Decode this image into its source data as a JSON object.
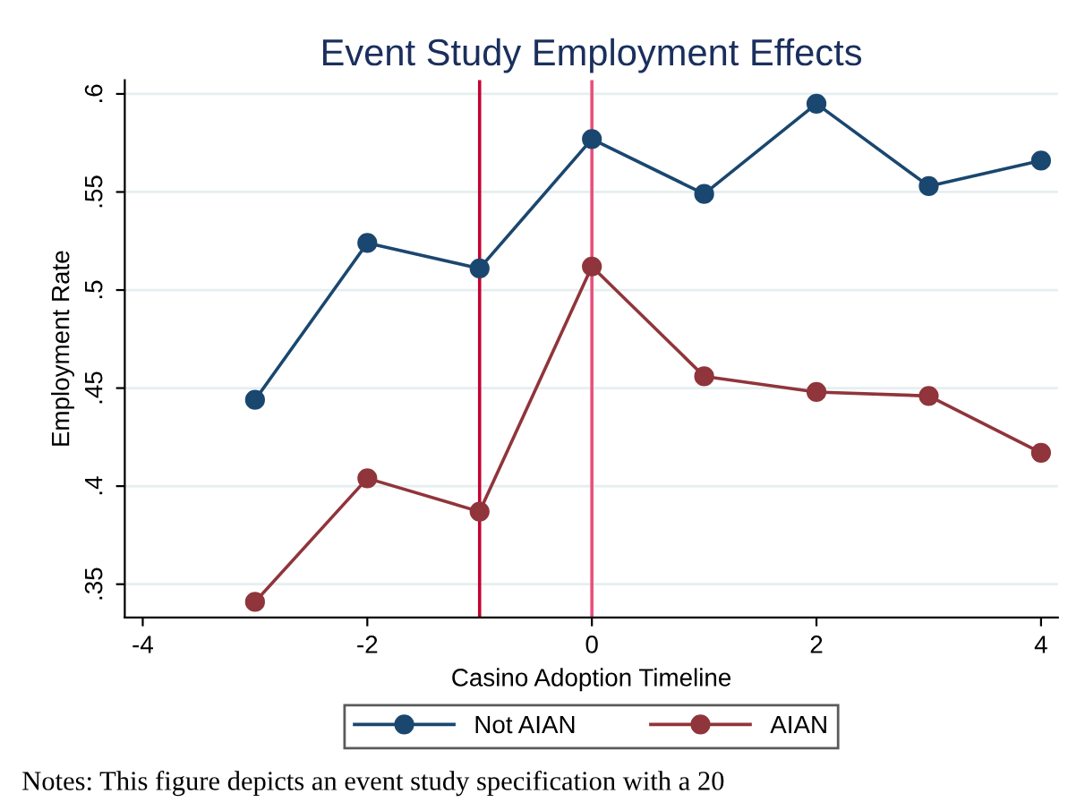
{
  "chart_data": {
    "type": "line",
    "title": "Event Study Employment Effects",
    "xlabel": "Casino Adoption Timeline",
    "ylabel": "Employment Rate",
    "x": [
      -3,
      -2,
      -1,
      0,
      1,
      2,
      3,
      4
    ],
    "series": [
      {
        "name": "Not AIAN",
        "color": "#1a476f",
        "values": [
          0.444,
          0.524,
          0.511,
          0.577,
          0.549,
          0.595,
          0.553,
          0.566
        ]
      },
      {
        "name": "AIAN",
        "color": "#90353b",
        "values": [
          0.341,
          0.404,
          0.387,
          0.512,
          0.456,
          0.448,
          0.446,
          0.417
        ]
      }
    ],
    "xlim": [
      -4.16,
      4.15
    ],
    "ylim": [
      0.333,
      0.607
    ],
    "xticks": [
      {
        "value": -4,
        "label": "-4"
      },
      {
        "value": -2,
        "label": "-2"
      },
      0,
      2,
      4
    ],
    "yticks": [
      {
        "value": 0.35,
        "label": ".35"
      },
      {
        "value": 0.4,
        "label": ".4"
      },
      {
        "value": 0.45,
        "label": ".45"
      },
      {
        "value": 0.5,
        "label": ".5"
      },
      {
        "value": 0.55,
        "label": ".55"
      },
      {
        "value": 0.6,
        "label": ".6"
      }
    ],
    "ref_lines": [
      {
        "axis": "x",
        "value": -1,
        "color": "#c10534"
      },
      {
        "axis": "x",
        "value": 0,
        "color": "#e8517c"
      }
    ],
    "annotations": [
      "Notes: This figure depicts an event study specification with a 20"
    ],
    "grid": "y",
    "legend": "bottom",
    "marker": "circle",
    "line_style": "solid"
  }
}
